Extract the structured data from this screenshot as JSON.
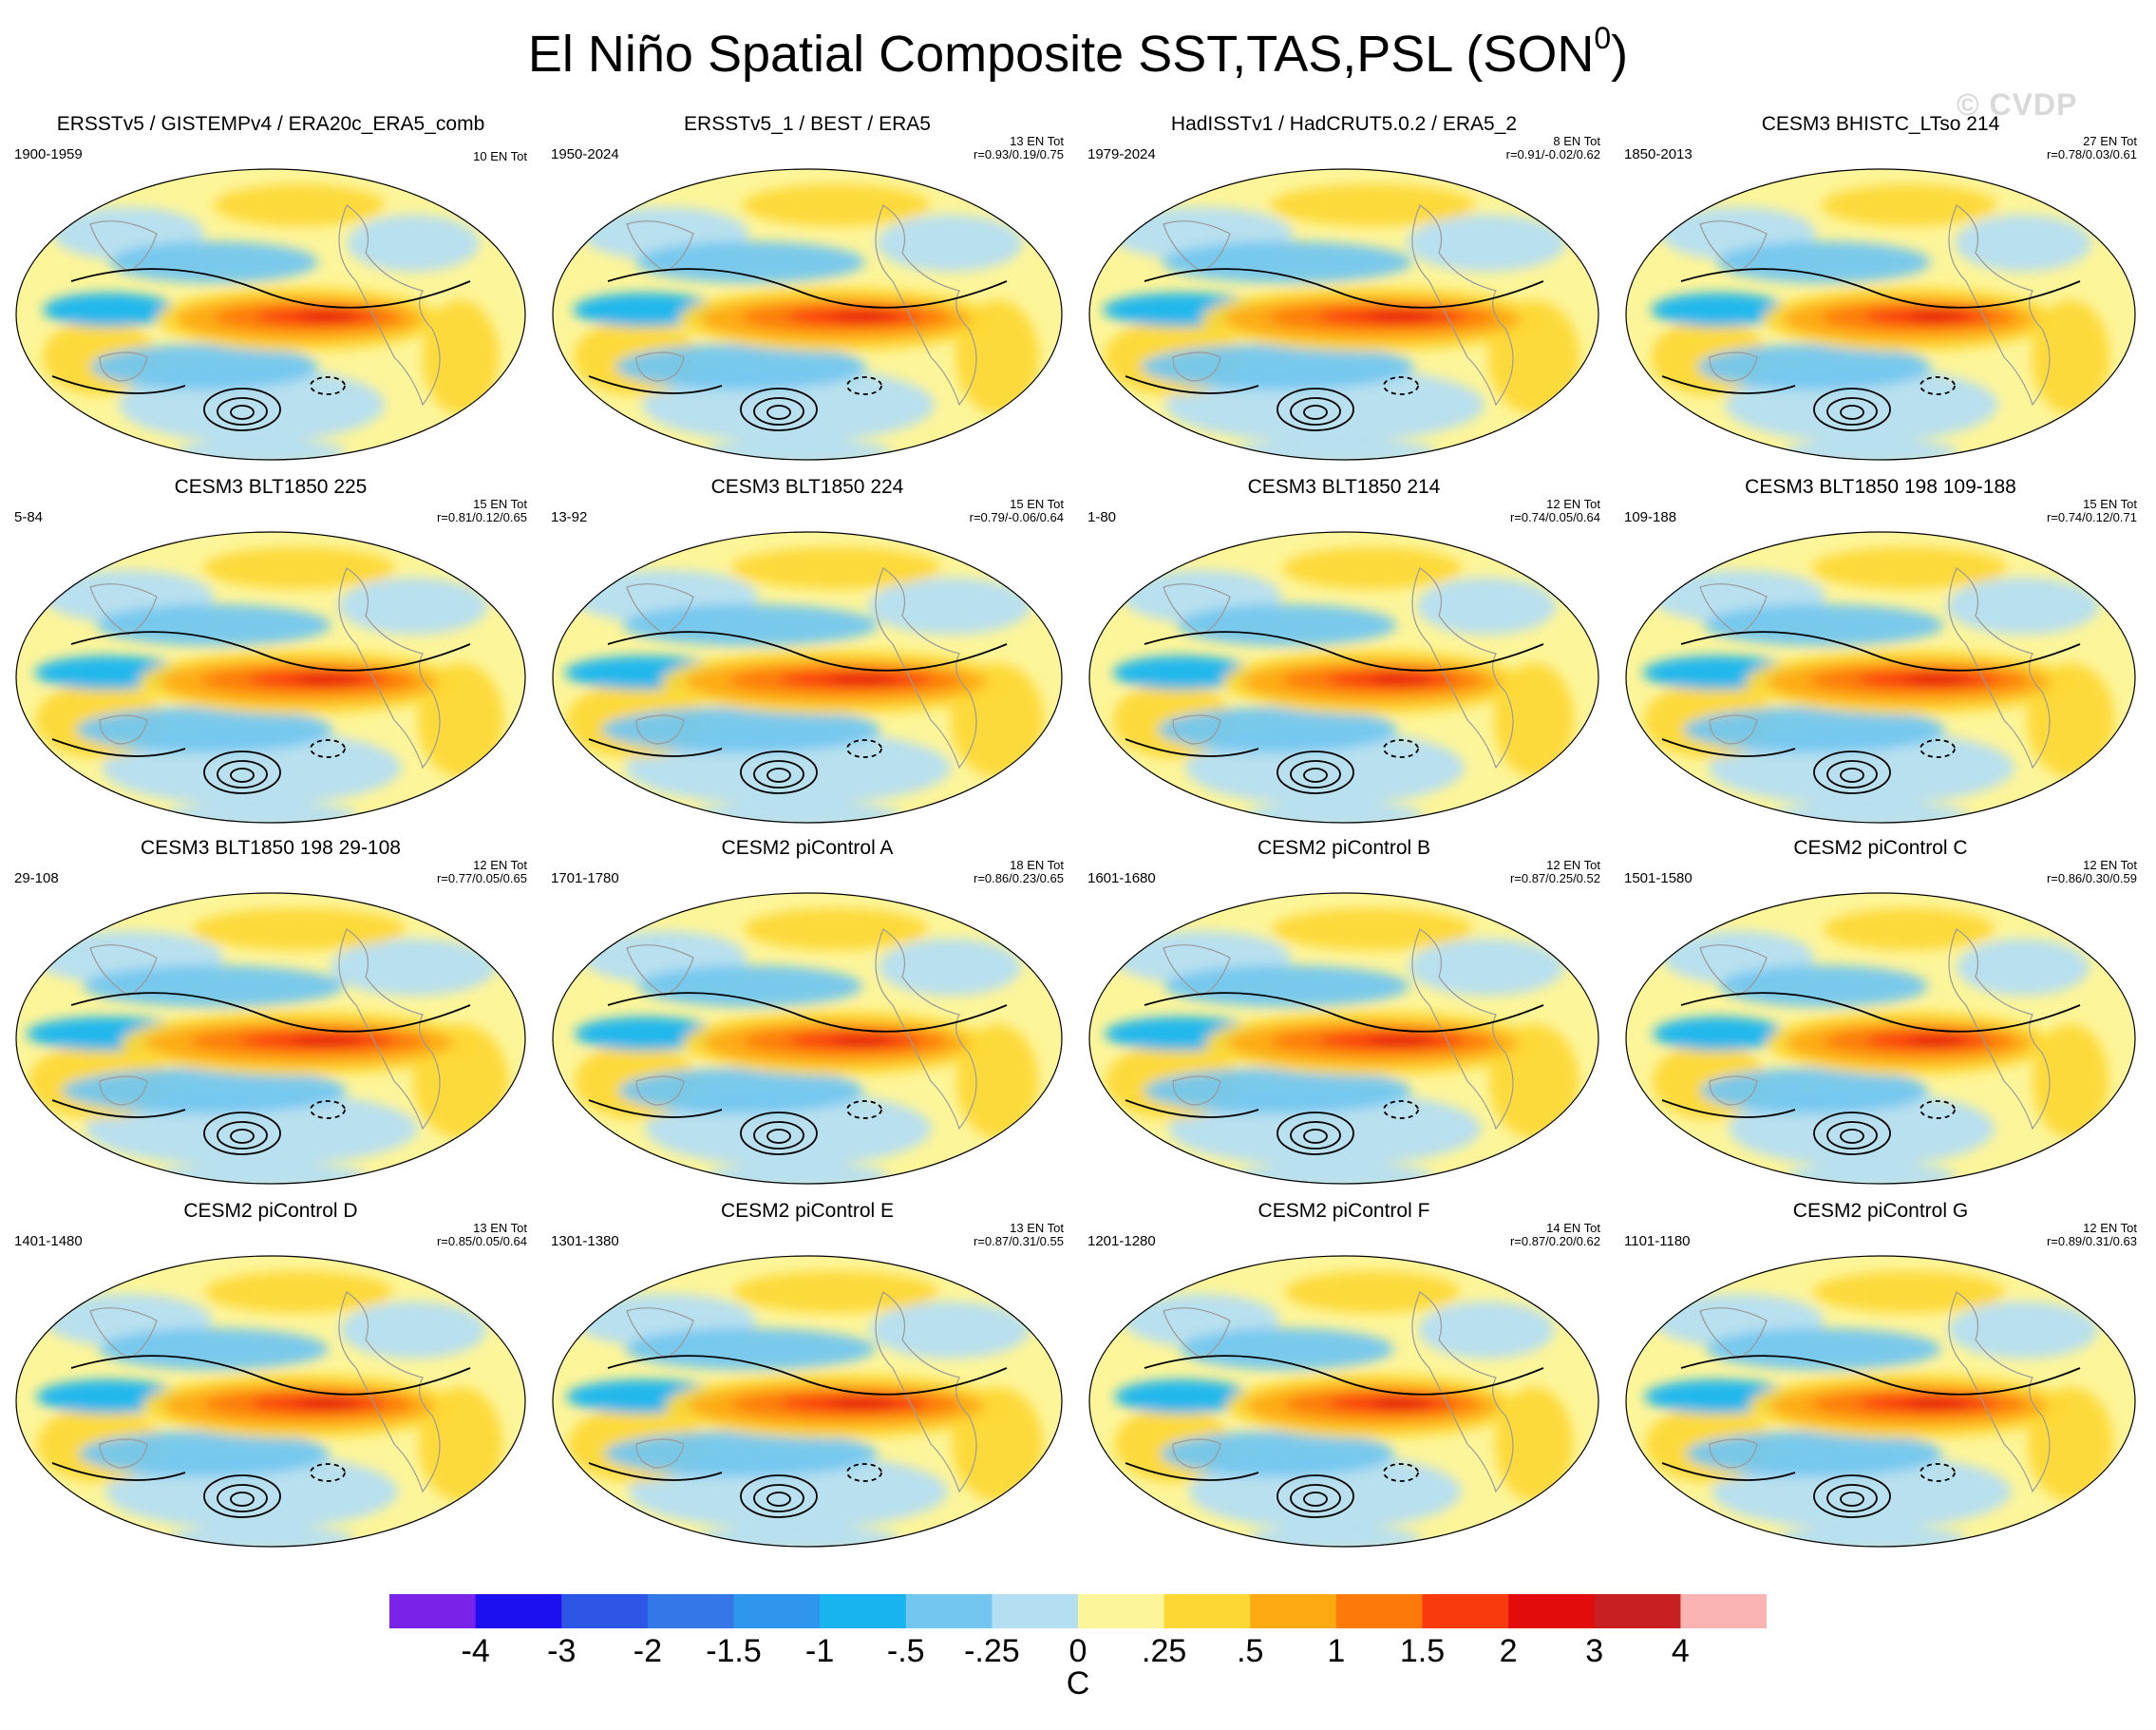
{
  "title": "El Niño Spatial Composite SST,TAS,PSL (SON",
  "title_sup": "0",
  "title_close": ")",
  "watermark": "© CVDP",
  "chart_data": {
    "type": "heatmap",
    "description_variables": "SST, TAS (shaded, C) and PSL (contours)",
    "panels": [
      {
        "title": "ERSSTv5 / GISTEMPv4 / ERA20c_ERA5_comb",
        "years": "1900-1959",
        "en_tot": "10 EN Tot",
        "stats": ""
      },
      {
        "title": "ERSSTv5_1 / BEST / ERA5",
        "years": "1950-2024",
        "en_tot": "13 EN Tot",
        "stats": "r=0.93/0.19/0.75"
      },
      {
        "title": "HadISSTv1 / HadCRUT5.0.2 / ERA5_2",
        "years": "1979-2024",
        "en_tot": "8 EN Tot",
        "stats": "r=0.91/-0.02/0.62"
      },
      {
        "title": "CESM3 BHISTC_LTso 214",
        "years": "1850-2013",
        "en_tot": "27 EN Tot",
        "stats": "r=0.78/0.03/0.61"
      },
      {
        "title": "CESM3 BLT1850 225",
        "years": "5-84",
        "en_tot": "15 EN Tot",
        "stats": "r=0.81/0.12/0.65"
      },
      {
        "title": "CESM3 BLT1850 224",
        "years": "13-92",
        "en_tot": "15 EN Tot",
        "stats": "r=0.79/-0.06/0.64"
      },
      {
        "title": "CESM3 BLT1850 214",
        "years": "1-80",
        "en_tot": "12 EN Tot",
        "stats": "r=0.74/0.05/0.64"
      },
      {
        "title": "CESM3 BLT1850 198 109-188",
        "years": "109-188",
        "en_tot": "15 EN Tot",
        "stats": "r=0.74/0.12/0.71"
      },
      {
        "title": "CESM3 BLT1850 198 29-108",
        "years": "29-108",
        "en_tot": "12 EN Tot",
        "stats": "r=0.77/0.05/0.65"
      },
      {
        "title": "CESM2 piControl A",
        "years": "1701-1780",
        "en_tot": "18 EN Tot",
        "stats": "r=0.86/0.23/0.65"
      },
      {
        "title": "CESM2 piControl B",
        "years": "1601-1680",
        "en_tot": "12 EN Tot",
        "stats": "r=0.87/0.25/0.52"
      },
      {
        "title": "CESM2 piControl C",
        "years": "1501-1580",
        "en_tot": "12 EN Tot",
        "stats": "r=0.86/0.30/0.59"
      },
      {
        "title": "CESM2 piControl D",
        "years": "1401-1480",
        "en_tot": "13 EN Tot",
        "stats": "r=0.85/0.05/0.64"
      },
      {
        "title": "CESM2 piControl E",
        "years": "1301-1380",
        "en_tot": "13 EN Tot",
        "stats": "r=0.87/0.31/0.55"
      },
      {
        "title": "CESM2 piControl F",
        "years": "1201-1280",
        "en_tot": "14 EN Tot",
        "stats": "r=0.87/0.20/0.62"
      },
      {
        "title": "CESM2 piControl G",
        "years": "1101-1180",
        "en_tot": "12 EN Tot",
        "stats": "r=0.89/0.31/0.63"
      }
    ],
    "colorbar": {
      "units": "C",
      "tick_labels": [
        "-4",
        "-3",
        "-2",
        "-1.5",
        "-1",
        "-.5",
        "-.25",
        "0",
        ".25",
        ".5",
        "1",
        "1.5",
        "2",
        "3",
        "4"
      ],
      "colors": [
        "#7b22e8",
        "#1c0ff0",
        "#2d55e6",
        "#3478e8",
        "#2e96ec",
        "#18b4f0",
        "#72c6f0",
        "#b4def2",
        "#fdf59a",
        "#fdd835",
        "#fdaa12",
        "#fd7a0a",
        "#f93a0c",
        "#e30c0c",
        "#c81f23",
        "#fab4b4"
      ]
    }
  }
}
